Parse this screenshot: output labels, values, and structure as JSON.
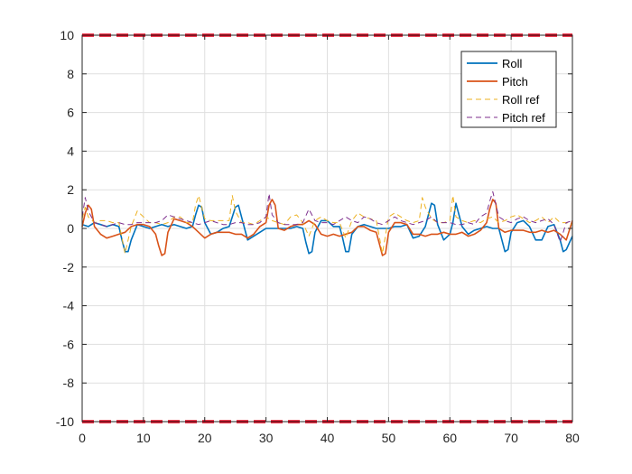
{
  "chart_data": {
    "type": "line",
    "title": "",
    "xlabel": "",
    "ylabel": "",
    "xlim": [
      0,
      80
    ],
    "ylim": [
      -10,
      10
    ],
    "xticks": [
      0,
      10,
      20,
      30,
      40,
      50,
      60,
      70,
      80
    ],
    "yticks": [
      -10,
      -8,
      -6,
      -4,
      -2,
      0,
      2,
      4,
      6,
      8,
      10
    ],
    "tick_labels_x": [
      "0",
      "10",
      "20",
      "30",
      "40",
      "50",
      "60",
      "70",
      "80"
    ],
    "tick_labels_y": [
      "-10",
      "-8",
      "-6",
      "-4",
      "-2",
      "0",
      "2",
      "4",
      "6",
      "8",
      "10"
    ],
    "grid": true,
    "legend_position": "top-right",
    "limit_lines": {
      "values": [
        10,
        -10
      ],
      "color": "#e8001c",
      "style": "dashed"
    },
    "series": [
      {
        "name": "Roll",
        "color": "#0072bd",
        "style": "solid",
        "x": [
          0,
          1,
          2,
          3,
          4,
          5,
          6,
          6.5,
          7,
          7.5,
          8,
          9,
          10,
          11,
          12,
          13,
          14,
          15,
          16,
          17,
          18,
          18.5,
          19,
          19.5,
          20,
          21,
          22,
          23,
          24,
          25,
          25.5,
          26,
          27,
          28,
          29,
          30,
          31,
          32,
          33,
          34,
          35,
          36,
          36.5,
          37,
          37.5,
          38,
          39,
          40,
          41,
          42,
          42.5,
          43,
          43.5,
          44,
          45,
          46,
          47,
          48,
          49,
          50,
          51,
          52,
          53,
          54,
          55,
          56,
          56.5,
          57,
          57.5,
          58,
          59,
          60,
          60.5,
          61,
          62,
          63,
          64,
          65,
          66,
          67,
          68,
          68.5,
          69,
          69.5,
          70,
          71,
          72,
          73,
          74,
          75,
          76,
          77,
          78,
          78.5,
          79,
          80
        ],
        "y": [
          0.2,
          0.1,
          0.3,
          0.2,
          0.1,
          0.2,
          0.1,
          -0.6,
          -1.2,
          -1.2,
          -0.6,
          0.2,
          0.1,
          0,
          0.1,
          0.2,
          0.1,
          0.2,
          0.1,
          0,
          0.1,
          0.7,
          1.2,
          1.1,
          0.3,
          -0.3,
          -0.2,
          0,
          0.1,
          1.1,
          1.2,
          0.6,
          -0.6,
          -0.4,
          -0.2,
          0,
          0,
          0,
          0,
          0,
          0.1,
          0,
          -0.7,
          -1.3,
          -1.2,
          -0.2,
          0.4,
          0.4,
          0.1,
          0.1,
          -0.5,
          -1.2,
          -1.2,
          -0.3,
          0.1,
          0.2,
          0.1,
          0,
          0,
          0,
          0.1,
          0.1,
          0.2,
          -0.5,
          -0.4,
          0.1,
          0.7,
          1.3,
          1.2,
          0.2,
          -0.6,
          -0.3,
          0.3,
          1.3,
          0.1,
          -0.3,
          -0.1,
          0,
          0.1,
          0,
          0,
          -0.6,
          -1.2,
          -1.1,
          -0.2,
          0.3,
          0.4,
          0.1,
          -0.6,
          -0.6,
          0.1,
          0.2,
          -0.6,
          -1.2,
          -1.1,
          -0.4
        ]
      },
      {
        "name": "Pitch",
        "color": "#d95319",
        "style": "solid",
        "x": [
          0,
          0.5,
          1,
          1.5,
          2,
          3,
          4,
          5,
          6,
          7,
          8,
          9,
          10,
          11,
          12,
          12.5,
          13,
          13.5,
          14,
          15,
          16,
          17,
          18,
          19,
          20,
          21,
          22,
          23,
          24,
          25,
          26,
          27,
          28,
          29,
          30,
          30.5,
          31,
          31.5,
          32,
          33,
          34,
          35,
          36,
          37,
          38,
          39,
          40,
          41,
          42,
          43,
          44,
          45,
          46,
          47,
          48,
          48.5,
          49,
          49.5,
          50,
          51,
          52,
          53,
          54,
          55,
          56,
          57,
          58,
          59,
          60,
          61,
          62,
          63,
          64,
          65,
          66,
          66.5,
          67,
          67.5,
          68,
          69,
          70,
          71,
          72,
          73,
          74,
          75,
          76,
          77,
          78,
          79,
          80
        ],
        "y": [
          0.1,
          0.8,
          1.2,
          1.0,
          0.1,
          -0.3,
          -0.5,
          -0.4,
          -0.3,
          -0.2,
          0.1,
          0.2,
          0.2,
          0.1,
          -0.3,
          -0.9,
          -1.4,
          -1.3,
          -0.2,
          0.5,
          0.4,
          0.3,
          0.1,
          -0.2,
          -0.5,
          -0.3,
          -0.2,
          -0.2,
          -0.2,
          -0.3,
          -0.3,
          -0.5,
          -0.3,
          0.1,
          0.3,
          1.2,
          1.5,
          1.2,
          0,
          -0.1,
          0.1,
          0.2,
          0.2,
          0.4,
          0.2,
          -0.3,
          -0.4,
          -0.3,
          -0.4,
          -0.3,
          -0.2,
          0.1,
          0.1,
          -0.1,
          -0.2,
          -0.8,
          -1.4,
          -1.3,
          -0.2,
          0.3,
          0.3,
          0.2,
          -0.3,
          -0.3,
          -0.4,
          -0.3,
          -0.3,
          -0.2,
          -0.3,
          -0.3,
          -0.2,
          -0.4,
          -0.3,
          -0.1,
          0.3,
          1.0,
          1.5,
          1.3,
          0,
          -0.2,
          -0.1,
          -0.1,
          -0.1,
          -0.2,
          -0.2,
          -0.1,
          -0.2,
          -0.1,
          -0.3,
          -0.6,
          0.4
        ]
      },
      {
        "name": "Roll ref",
        "color": "#edb120",
        "style": "dashed",
        "x": [
          0,
          0.5,
          1,
          2,
          3,
          4,
          5,
          6,
          7,
          8,
          9,
          10,
          11,
          12,
          13,
          14,
          15,
          16,
          17,
          18,
          18.5,
          19,
          20,
          21,
          22,
          23,
          24,
          24.5,
          25,
          26,
          27,
          28,
          29,
          30,
          31,
          32,
          33,
          34,
          35,
          36,
          37,
          38,
          39,
          40,
          41,
          42,
          43,
          44,
          45,
          46,
          47,
          48,
          49,
          50,
          51,
          52,
          53,
          54,
          55,
          55.5,
          56,
          57,
          58,
          59,
          60,
          60.5,
          61,
          62,
          63,
          64,
          65,
          66,
          67,
          68,
          69,
          70,
          71,
          72,
          73,
          74,
          75,
          76,
          77,
          78,
          79,
          80
        ],
        "y": [
          0.5,
          1.1,
          0.6,
          0.3,
          0.4,
          0.4,
          0.3,
          0.3,
          -1.3,
          0.1,
          0.9,
          0.6,
          0.3,
          0.3,
          0.2,
          0.3,
          0.6,
          0.6,
          0.3,
          0.3,
          1.2,
          1.7,
          0.5,
          0.4,
          0.4,
          0.4,
          0.4,
          1.7,
          0.9,
          0.3,
          0.3,
          0.2,
          0.4,
          0.6,
          0.4,
          0.3,
          0.2,
          0.6,
          0.7,
          0.3,
          -0.4,
          0.4,
          0.6,
          0.4,
          0.3,
          0.3,
          -0.5,
          0.4,
          0.8,
          0.6,
          0.5,
          0.4,
          -1.3,
          0.6,
          0.8,
          0.6,
          0.4,
          0.3,
          0.4,
          1.6,
          1.1,
          0.5,
          0.3,
          0.3,
          0.4,
          1.7,
          0.6,
          0.4,
          0.3,
          0.4,
          0.3,
          0.5,
          0.6,
          0.3,
          0.4,
          0.6,
          0.7,
          0.5,
          0.3,
          0.4,
          0.6,
          0.3,
          0.6,
          0.3,
          0.3,
          0.2
        ]
      },
      {
        "name": "Pitch ref",
        "color": "#7e2f8e",
        "style": "dashed",
        "x": [
          0,
          0.5,
          1,
          2,
          3,
          4,
          5,
          6,
          7,
          8,
          9,
          10,
          11,
          12,
          13,
          14,
          15,
          16,
          17,
          18,
          19,
          20,
          21,
          22,
          23,
          24,
          25,
          26,
          27,
          28,
          29,
          30,
          30.5,
          31,
          32,
          33,
          34,
          35,
          36,
          37,
          38,
          39,
          40,
          41,
          42,
          43,
          44,
          45,
          46,
          47,
          48,
          49,
          50,
          51,
          52,
          53,
          54,
          55,
          56,
          57,
          58,
          59,
          60,
          61,
          62,
          63,
          64,
          65,
          66,
          66.5,
          67,
          68,
          69,
          70,
          71,
          72,
          73,
          74,
          75,
          76,
          77,
          78,
          79,
          80
        ],
        "y": [
          0.6,
          1.6,
          0.9,
          0.3,
          0.2,
          0.1,
          0.2,
          0.3,
          0.2,
          0.2,
          0.3,
          0.3,
          0.3,
          0.3,
          0.4,
          0.7,
          0.6,
          0.5,
          0.4,
          0.3,
          0.2,
          0.3,
          0.4,
          0.3,
          0.2,
          0.2,
          0.3,
          0.3,
          0.2,
          0.2,
          0.3,
          0.6,
          1.8,
          0.7,
          0.3,
          0.2,
          0.2,
          0.2,
          0.3,
          1.0,
          0.4,
          0.3,
          0.3,
          0.2,
          0.4,
          0.6,
          0.4,
          0.3,
          0.6,
          0.5,
          0.3,
          0.2,
          0.4,
          0.6,
          0.4,
          0.3,
          0.2,
          0.3,
          0.4,
          0.6,
          0.3,
          0.3,
          0.3,
          0.2,
          0.2,
          0.3,
          0.2,
          0.6,
          0.8,
          1.4,
          1.9,
          0.6,
          0.4,
          0.3,
          0.5,
          0.6,
          0.4,
          0.3,
          0.4,
          0.5,
          0.2,
          -0.7,
          0.3,
          0.4
        ]
      }
    ]
  }
}
